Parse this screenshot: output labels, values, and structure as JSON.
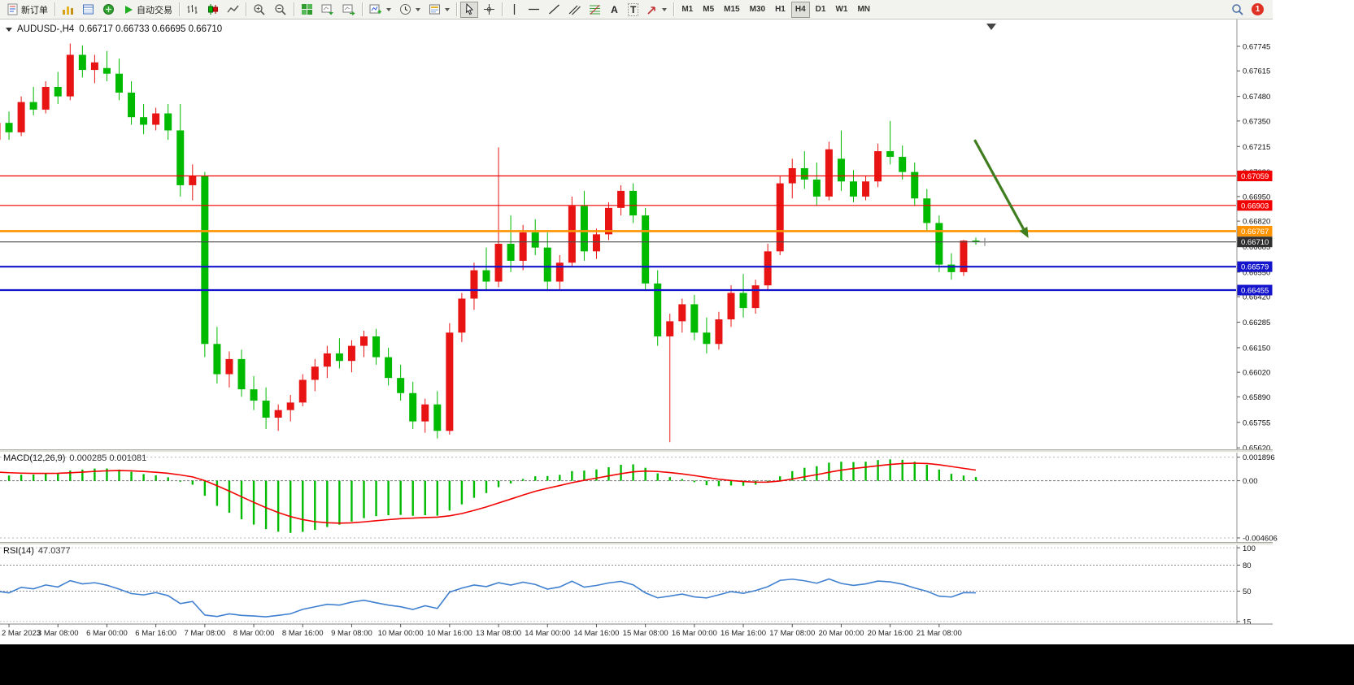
{
  "toolbar": {
    "new_order_label": "新订单",
    "auto_trading_label": "自动交易",
    "text_tool_label": "A",
    "label_tool_label": "T",
    "timeframes": [
      "M1",
      "M5",
      "M15",
      "M30",
      "H1",
      "H4",
      "D1",
      "W1",
      "MN"
    ],
    "active_timeframe": "H4",
    "notification_badge": "1"
  },
  "chart_data": [
    {
      "type": "candlestick",
      "title": "AUDUSD-,H4",
      "ohlc_text": "0.66717 0.66733 0.66695 0.66710",
      "current_ohlc": {
        "open": 0.66717,
        "high": 0.66733,
        "low": 0.66695,
        "close": 0.6671
      },
      "up_color": "#e81414",
      "down_color": "#00ba00",
      "ylim": [
        0.65616,
        0.67861
      ],
      "y_axis_ticks": [
        "0.67745",
        "0.67615",
        "0.67480",
        "0.67350",
        "0.67215",
        "0.67080",
        "0.66950",
        "0.66820",
        "0.66685",
        "0.66550",
        "0.66420",
        "0.66285",
        "0.66150",
        "0.66020",
        "0.65890",
        "0.65755",
        "0.65620"
      ],
      "x_labels": [
        "2 Mar 2023",
        "3 Mar 08:00",
        "6 Mar 00:00",
        "6 Mar 16:00",
        "7 Mar 08:00",
        "8 Mar 00:00",
        "8 Mar 16:00",
        "9 Mar 08:00",
        "10 Mar 00:00",
        "10 Mar 16:00",
        "13 Mar 08:00",
        "14 Mar 00:00",
        "14 Mar 16:00",
        "15 Mar 08:00",
        "16 Mar 00:00",
        "16 Mar 16:00",
        "17 Mar 08:00",
        "20 Mar 00:00",
        "20 Mar 16:00",
        "21 Mar 08:00"
      ],
      "hlines": [
        {
          "price": 0.67059,
          "label": "0.67059",
          "color": "#f20000",
          "box_color": "#f20000",
          "width": 1.2
        },
        {
          "price": 0.66903,
          "label": "0.66903",
          "color": "#f20000",
          "box_color": "#f20000",
          "width": 1.2
        },
        {
          "price": 0.66767,
          "label": "0.66767",
          "color": "#ff9400",
          "box_color": "#ff9400",
          "width": 2.6
        },
        {
          "price": 0.6671,
          "label": "0.66710",
          "color": "#4a4a4a",
          "box_color": "#2f2f2f",
          "width": 1.2,
          "role": "current_price"
        },
        {
          "price": 0.66579,
          "label": "0.66579",
          "color": "#1414cc",
          "box_color": "#1414cc",
          "width": 2.2
        },
        {
          "price": 0.66455,
          "label": "0.66455",
          "color": "#1414cc",
          "box_color": "#1414cc",
          "width": 2.2
        }
      ],
      "trend_arrow": {
        "from": {
          "bar": 79.9,
          "price": 0.6725
        },
        "to": {
          "bar": 84.3,
          "price": 0.6673
        },
        "color": "#3f7d1f"
      },
      "candles": [
        [
          "2 Mar 12:00",
          0.6725,
          0.6738,
          0.672,
          0.6734
        ],
        [
          "2 Mar 16:00",
          0.6734,
          0.674,
          0.6725,
          0.6729
        ],
        [
          "2 Mar 20:00",
          0.6729,
          0.6748,
          0.6727,
          0.6745
        ],
        [
          "3 Mar 00:00",
          0.6745,
          0.6753,
          0.6738,
          0.6741
        ],
        [
          "3 Mar 04:00",
          0.6741,
          0.6756,
          0.6739,
          0.6753
        ],
        [
          "3 Mar 08:00",
          0.6753,
          0.6761,
          0.6744,
          0.6748
        ],
        [
          "3 Mar 12:00",
          0.6748,
          0.6776,
          0.6746,
          0.677
        ],
        [
          "3 Mar 16:00",
          0.677,
          0.6775,
          0.6758,
          0.6762
        ],
        [
          "3 Mar 20:00",
          0.6762,
          0.677,
          0.6755,
          0.6766
        ],
        [
          "6 Mar 00:00",
          0.6763,
          0.6772,
          0.6756,
          0.676
        ],
        [
          "6 Mar 04:00",
          0.676,
          0.6768,
          0.6746,
          0.675
        ],
        [
          "6 Mar 08:00",
          0.675,
          0.6756,
          0.6733,
          0.6737
        ],
        [
          "6 Mar 12:00",
          0.6737,
          0.6744,
          0.6728,
          0.6733
        ],
        [
          "6 Mar 16:00",
          0.6733,
          0.6742,
          0.673,
          0.6739
        ],
        [
          "6 Mar 20:00",
          0.6739,
          0.6744,
          0.6725,
          0.673
        ],
        [
          "7 Mar 00:00",
          0.673,
          0.6744,
          0.6695,
          0.6701
        ],
        [
          "7 Mar 04:00",
          0.6701,
          0.6712,
          0.6693,
          0.6706
        ],
        [
          "7 Mar 08:00",
          0.6706,
          0.6708,
          0.661,
          0.6617
        ],
        [
          "7 Mar 12:00",
          0.6617,
          0.6626,
          0.6596,
          0.6601
        ],
        [
          "7 Mar 16:00",
          0.6601,
          0.6613,
          0.6594,
          0.6609
        ],
        [
          "7 Mar 20:00",
          0.6609,
          0.6614,
          0.6589,
          0.6593
        ],
        [
          "8 Mar 00:00",
          0.6593,
          0.66,
          0.6582,
          0.6587
        ],
        [
          "8 Mar 04:00",
          0.6587,
          0.6594,
          0.6572,
          0.6578
        ],
        [
          "8 Mar 08:00",
          0.6578,
          0.6585,
          0.6571,
          0.6582
        ],
        [
          "8 Mar 12:00",
          0.6582,
          0.659,
          0.6576,
          0.6586
        ],
        [
          "8 Mar 16:00",
          0.6586,
          0.6601,
          0.6584,
          0.6598
        ],
        [
          "8 Mar 20:00",
          0.6598,
          0.6609,
          0.6592,
          0.6605
        ],
        [
          "9 Mar 00:00",
          0.6605,
          0.6616,
          0.6599,
          0.6612
        ],
        [
          "9 Mar 04:00",
          0.6612,
          0.662,
          0.6604,
          0.6608
        ],
        [
          "9 Mar 08:00",
          0.6608,
          0.6619,
          0.6602,
          0.6616
        ],
        [
          "9 Mar 12:00",
          0.6616,
          0.6624,
          0.661,
          0.6621
        ],
        [
          "9 Mar 16:00",
          0.6621,
          0.6625,
          0.6606,
          0.661
        ],
        [
          "9 Mar 20:00",
          0.661,
          0.6615,
          0.6595,
          0.6599
        ],
        [
          "10 Mar 00:00",
          0.6599,
          0.6606,
          0.6587,
          0.6591
        ],
        [
          "10 Mar 04:00",
          0.6591,
          0.6597,
          0.6572,
          0.6576
        ],
        [
          "10 Mar 08:00",
          0.6576,
          0.6588,
          0.657,
          0.6585
        ],
        [
          "10 Mar 12:00",
          0.6585,
          0.6592,
          0.6567,
          0.6571
        ],
        [
          "10 Mar 16:00",
          0.6571,
          0.6628,
          0.6569,
          0.6623
        ],
        [
          "10 Mar 20:00",
          0.6623,
          0.6644,
          0.6618,
          0.6641
        ],
        [
          "13 Mar 00:00",
          0.6641,
          0.666,
          0.6635,
          0.6656
        ],
        [
          "13 Mar 04:00",
          0.6656,
          0.6668,
          0.6645,
          0.665
        ],
        [
          "13 Mar 08:00",
          0.665,
          0.6721,
          0.6647,
          0.667
        ],
        [
          "13 Mar 12:00",
          0.667,
          0.6685,
          0.6655,
          0.6661
        ],
        [
          "13 Mar 16:00",
          0.6661,
          0.668,
          0.6656,
          0.6676
        ],
        [
          "13 Mar 20:00",
          0.6676,
          0.6683,
          0.6664,
          0.6668
        ],
        [
          "14 Mar 00:00",
          0.6668,
          0.6676,
          0.6645,
          0.665
        ],
        [
          "14 Mar 04:00",
          0.665,
          0.6664,
          0.6646,
          0.666
        ],
        [
          "14 Mar 08:00",
          0.666,
          0.6695,
          0.6658,
          0.669
        ],
        [
          "14 Mar 12:00",
          0.669,
          0.6698,
          0.6661,
          0.6666
        ],
        [
          "14 Mar 16:00",
          0.6666,
          0.6678,
          0.6662,
          0.6675
        ],
        [
          "14 Mar 20:00",
          0.6675,
          0.6692,
          0.6672,
          0.6689
        ],
        [
          "15 Mar 00:00",
          0.6689,
          0.6701,
          0.6685,
          0.6698
        ],
        [
          "15 Mar 04:00",
          0.6698,
          0.6702,
          0.6681,
          0.6685
        ],
        [
          "15 Mar 08:00",
          0.6685,
          0.6689,
          0.6645,
          0.6649
        ],
        [
          "15 Mar 12:00",
          0.6649,
          0.6656,
          0.6616,
          0.6621
        ],
        [
          "15 Mar 16:00",
          0.6621,
          0.6633,
          0.6565,
          0.6629
        ],
        [
          "15 Mar 20:00",
          0.6629,
          0.6641,
          0.6623,
          0.6638
        ],
        [
          "16 Mar 00:00",
          0.6638,
          0.6643,
          0.6619,
          0.6623
        ],
        [
          "16 Mar 04:00",
          0.6623,
          0.6631,
          0.6612,
          0.6617
        ],
        [
          "16 Mar 08:00",
          0.6617,
          0.6634,
          0.6614,
          0.663
        ],
        [
          "16 Mar 12:00",
          0.663,
          0.6648,
          0.6626,
          0.6644
        ],
        [
          "16 Mar 16:00",
          0.6644,
          0.6654,
          0.6631,
          0.6636
        ],
        [
          "16 Mar 20:00",
          0.6636,
          0.6651,
          0.6633,
          0.6648
        ],
        [
          "17 Mar 00:00",
          0.6648,
          0.667,
          0.6645,
          0.6666
        ],
        [
          "17 Mar 04:00",
          0.6666,
          0.6706,
          0.6664,
          0.6702
        ],
        [
          "17 Mar 08:00",
          0.6702,
          0.6715,
          0.6694,
          0.671
        ],
        [
          "17 Mar 12:00",
          0.671,
          0.6719,
          0.6699,
          0.6704
        ],
        [
          "17 Mar 16:00",
          0.6704,
          0.6713,
          0.669,
          0.6695
        ],
        [
          "17 Mar 20:00",
          0.6695,
          0.6724,
          0.6693,
          0.672
        ],
        [
          "20 Mar 00:00",
          0.6715,
          0.673,
          0.6698,
          0.6703
        ],
        [
          "20 Mar 04:00",
          0.6703,
          0.6709,
          0.6692,
          0.6695
        ],
        [
          "20 Mar 08:00",
          0.6695,
          0.6706,
          0.6693,
          0.6703
        ],
        [
          "20 Mar 12:00",
          0.6703,
          0.6723,
          0.67,
          0.6719
        ],
        [
          "20 Mar 16:00",
          0.6719,
          0.6735,
          0.6712,
          0.6716
        ],
        [
          "20 Mar 20:00",
          0.6716,
          0.6722,
          0.6704,
          0.6708
        ],
        [
          "21 Mar 00:00",
          0.6708,
          0.6713,
          0.669,
          0.6694
        ],
        [
          "21 Mar 04:00",
          0.6694,
          0.6699,
          0.6677,
          0.6681
        ],
        [
          "21 Mar 08:00",
          0.6681,
          0.6685,
          0.6655,
          0.6659
        ],
        [
          "21 Mar 12:00",
          0.6659,
          0.6665,
          0.6651,
          0.6655
        ],
        [
          "21 Mar 16:00",
          0.6655,
          0.6672,
          0.6653,
          0.66717
        ],
        [
          "21 Mar 20:00",
          0.66717,
          0.66733,
          0.66695,
          0.6671
        ]
      ]
    },
    {
      "type": "bar",
      "title": "MACD(12,26,9)",
      "values_text": "0.000285 0.001081",
      "params": {
        "fast": 12,
        "slow": 26,
        "signal": 9
      },
      "current_macd": 0.000285,
      "current_signal": 0.001081,
      "histogram_color": "#00bb00",
      "signal_color": "#f20000",
      "ylim": [
        -0.005,
        0.0022
      ],
      "y_axis_ticks": [
        [
          "0.001896",
          0.001896
        ],
        [
          "0.00",
          0
        ],
        [
          "-0.004606",
          -0.004606
        ]
      ]
    },
    {
      "type": "line",
      "title": "RSI(14)",
      "current_value": "47.0377",
      "line_color": "#4080d0",
      "levels": [
        80,
        50
      ],
      "ylim": [
        12,
        102
      ],
      "y_axis_ticks": [
        [
          "100",
          100
        ],
        [
          "80",
          80
        ],
        [
          "50",
          50
        ],
        [
          "15",
          15
        ]
      ]
    }
  ]
}
